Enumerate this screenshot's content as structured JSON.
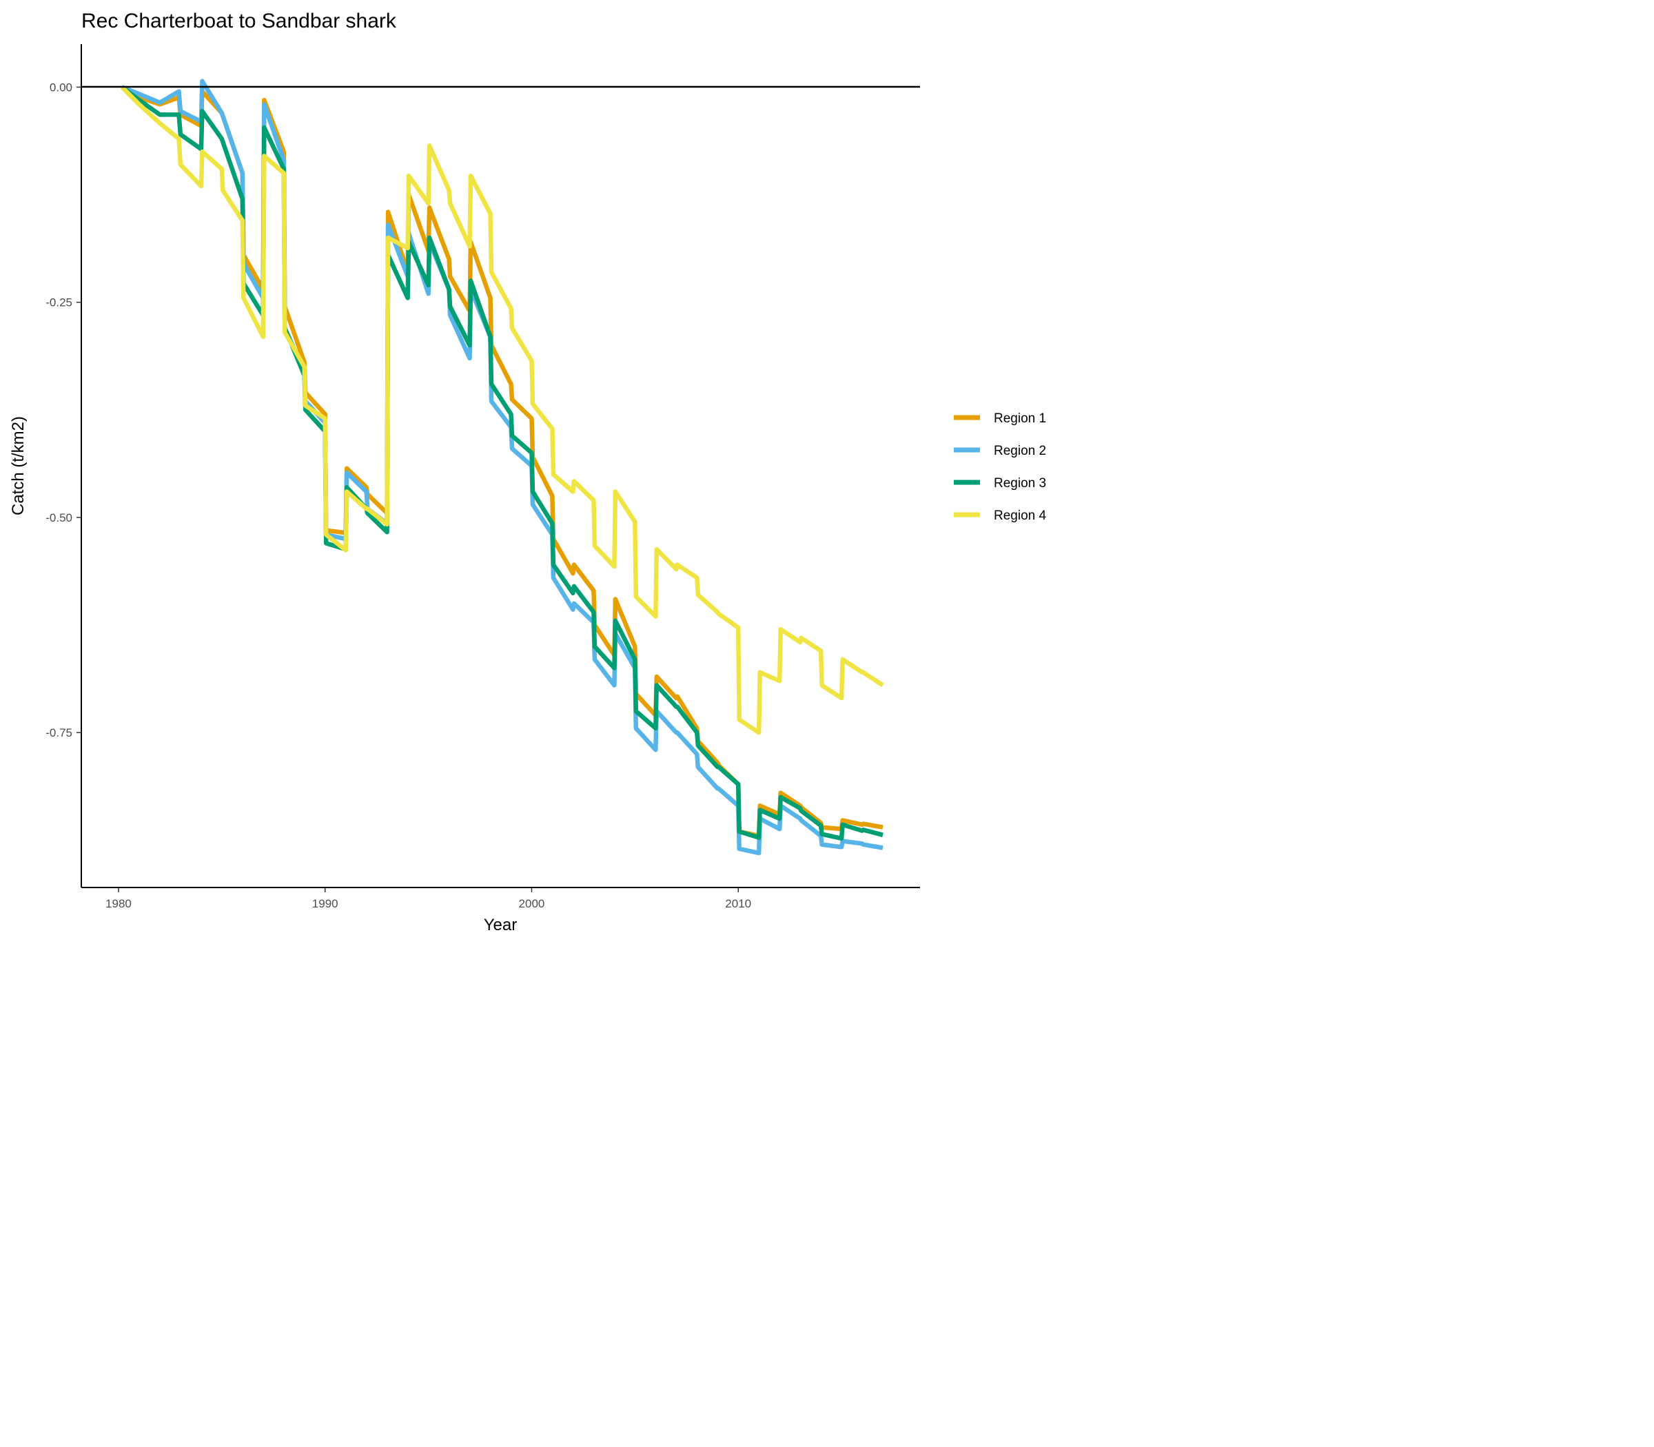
{
  "chart_data": {
    "type": "line",
    "title": "Rec Charterboat to Sandbar shark",
    "xlabel": "Year",
    "ylabel": "Catch (t/km2)",
    "xlim": [
      1978.2,
      2018.8
    ],
    "ylim": [
      -0.93,
      0.05
    ],
    "x_ticks": [
      1980,
      1990,
      2000,
      2010
    ],
    "y_ticks": [
      0,
      -0.25,
      -0.5,
      -0.75
    ],
    "x_tick_labels": [
      "1980",
      "1990",
      "2000",
      "2010"
    ],
    "y_tick_labels": [
      "0.00",
      "-0.25",
      "-0.50",
      "-0.75"
    ],
    "grid": false,
    "reference_line_y": 0,
    "legend_position": "right",
    "series": [
      {
        "name": "Region 1",
        "color": "#E69F00",
        "points": [
          [
            1980.17,
            0
          ],
          [
            1981.0,
            -0.012
          ],
          [
            1982.0,
            -0.02
          ],
          [
            1982.92,
            -0.012
          ],
          [
            1983.0,
            -0.032
          ],
          [
            1984.0,
            -0.045
          ],
          [
            1984.05,
            -0.005
          ],
          [
            1985.0,
            -0.03
          ],
          [
            1986.0,
            -0.1
          ],
          [
            1986.05,
            -0.195
          ],
          [
            1987.0,
            -0.235
          ],
          [
            1987.05,
            -0.015
          ],
          [
            1988.0,
            -0.075
          ],
          [
            1988.05,
            -0.255
          ],
          [
            1989.0,
            -0.32
          ],
          [
            1989.05,
            -0.355
          ],
          [
            1990.0,
            -0.38
          ],
          [
            1990.05,
            -0.515
          ],
          [
            1991.0,
            -0.518
          ],
          [
            1991.05,
            -0.443
          ],
          [
            1992.0,
            -0.465
          ],
          [
            1992.05,
            -0.473
          ],
          [
            1993.0,
            -0.495
          ],
          [
            1993.05,
            -0.145
          ],
          [
            1994.0,
            -0.215
          ],
          [
            1994.05,
            -0.125
          ],
          [
            1995.0,
            -0.19
          ],
          [
            1995.05,
            -0.14
          ],
          [
            1996.0,
            -0.2
          ],
          [
            1996.05,
            -0.22
          ],
          [
            1997.0,
            -0.26
          ],
          [
            1997.05,
            -0.18
          ],
          [
            1998.0,
            -0.245
          ],
          [
            1998.05,
            -0.3
          ],
          [
            1999.0,
            -0.345
          ],
          [
            1999.05,
            -0.363
          ],
          [
            2000.0,
            -0.385
          ],
          [
            2000.05,
            -0.43
          ],
          [
            2001.0,
            -0.475
          ],
          [
            2001.05,
            -0.525
          ],
          [
            2002.0,
            -0.565
          ],
          [
            2002.05,
            -0.555
          ],
          [
            2003.0,
            -0.585
          ],
          [
            2003.05,
            -0.625
          ],
          [
            2004.0,
            -0.66
          ],
          [
            2004.05,
            -0.595
          ],
          [
            2005.0,
            -0.65
          ],
          [
            2005.05,
            -0.705
          ],
          [
            2006.0,
            -0.73
          ],
          [
            2006.05,
            -0.685
          ],
          [
            2007.0,
            -0.71
          ],
          [
            2007.05,
            -0.708
          ],
          [
            2008.0,
            -0.745
          ],
          [
            2008.05,
            -0.76
          ],
          [
            2009.0,
            -0.785
          ],
          [
            2009.05,
            -0.788
          ],
          [
            2010.0,
            -0.81
          ],
          [
            2010.05,
            -0.865
          ],
          [
            2011.0,
            -0.87
          ],
          [
            2011.05,
            -0.835
          ],
          [
            2012.0,
            -0.845
          ],
          [
            2012.05,
            -0.82
          ],
          [
            2013.0,
            -0.835
          ],
          [
            2013.05,
            -0.837
          ],
          [
            2014.0,
            -0.855
          ],
          [
            2014.05,
            -0.86
          ],
          [
            2015.0,
            -0.862
          ],
          [
            2015.05,
            -0.852
          ],
          [
            2016.0,
            -0.857
          ],
          [
            2016.05,
            -0.856
          ],
          [
            2017.0,
            -0.86
          ]
        ]
      },
      {
        "name": "Region 2",
        "color": "#56B4E9",
        "points": [
          [
            1980.17,
            0
          ],
          [
            1981.0,
            -0.008
          ],
          [
            1982.0,
            -0.018
          ],
          [
            1982.92,
            -0.005
          ],
          [
            1983.0,
            -0.028
          ],
          [
            1984.0,
            -0.04
          ],
          [
            1984.05,
            0.007
          ],
          [
            1985.0,
            -0.03
          ],
          [
            1986.0,
            -0.1
          ],
          [
            1986.05,
            -0.205
          ],
          [
            1987.0,
            -0.245
          ],
          [
            1987.05,
            -0.02
          ],
          [
            1988.0,
            -0.085
          ],
          [
            1988.05,
            -0.28
          ],
          [
            1989.0,
            -0.33
          ],
          [
            1989.05,
            -0.365
          ],
          [
            1990.0,
            -0.39
          ],
          [
            1990.05,
            -0.52
          ],
          [
            1991.0,
            -0.525
          ],
          [
            1991.05,
            -0.448
          ],
          [
            1992.0,
            -0.47
          ],
          [
            1992.05,
            -0.49
          ],
          [
            1993.0,
            -0.507
          ],
          [
            1993.05,
            -0.16
          ],
          [
            1994.0,
            -0.22
          ],
          [
            1994.05,
            -0.17
          ],
          [
            1995.0,
            -0.24
          ],
          [
            1995.05,
            -0.18
          ],
          [
            1996.0,
            -0.235
          ],
          [
            1996.05,
            -0.265
          ],
          [
            1997.0,
            -0.315
          ],
          [
            1997.05,
            -0.235
          ],
          [
            1998.0,
            -0.29
          ],
          [
            1998.05,
            -0.365
          ],
          [
            1999.0,
            -0.395
          ],
          [
            1999.05,
            -0.42
          ],
          [
            2000.0,
            -0.44
          ],
          [
            2000.05,
            -0.485
          ],
          [
            2001.0,
            -0.52
          ],
          [
            2001.05,
            -0.57
          ],
          [
            2002.0,
            -0.607
          ],
          [
            2002.05,
            -0.6
          ],
          [
            2003.0,
            -0.622
          ],
          [
            2003.05,
            -0.665
          ],
          [
            2004.0,
            -0.695
          ],
          [
            2004.05,
            -0.635
          ],
          [
            2005.0,
            -0.675
          ],
          [
            2005.05,
            -0.745
          ],
          [
            2006.0,
            -0.77
          ],
          [
            2006.05,
            -0.725
          ],
          [
            2007.0,
            -0.75
          ],
          [
            2007.05,
            -0.75
          ],
          [
            2008.0,
            -0.775
          ],
          [
            2008.05,
            -0.79
          ],
          [
            2009.0,
            -0.815
          ],
          [
            2009.05,
            -0.815
          ],
          [
            2010.0,
            -0.835
          ],
          [
            2010.05,
            -0.885
          ],
          [
            2011.0,
            -0.89
          ],
          [
            2011.05,
            -0.85
          ],
          [
            2012.0,
            -0.862
          ],
          [
            2012.05,
            -0.835
          ],
          [
            2013.0,
            -0.85
          ],
          [
            2013.05,
            -0.852
          ],
          [
            2014.0,
            -0.87
          ],
          [
            2014.05,
            -0.88
          ],
          [
            2015.0,
            -0.883
          ],
          [
            2015.05,
            -0.876
          ],
          [
            2016.0,
            -0.879
          ],
          [
            2016.05,
            -0.88
          ],
          [
            2017.0,
            -0.884
          ]
        ]
      },
      {
        "name": "Region 3",
        "color": "#009E73",
        "points": [
          [
            1980.17,
            0
          ],
          [
            1981.0,
            -0.015
          ],
          [
            1982.0,
            -0.032
          ],
          [
            1982.92,
            -0.032
          ],
          [
            1983.0,
            -0.055
          ],
          [
            1984.0,
            -0.072
          ],
          [
            1984.05,
            -0.028
          ],
          [
            1985.0,
            -0.06
          ],
          [
            1986.0,
            -0.13
          ],
          [
            1986.05,
            -0.228
          ],
          [
            1987.0,
            -0.265
          ],
          [
            1987.05,
            -0.047
          ],
          [
            1988.0,
            -0.095
          ],
          [
            1988.05,
            -0.28
          ],
          [
            1989.0,
            -0.335
          ],
          [
            1989.05,
            -0.375
          ],
          [
            1990.0,
            -0.4
          ],
          [
            1990.05,
            -0.53
          ],
          [
            1991.0,
            -0.537
          ],
          [
            1991.05,
            -0.465
          ],
          [
            1992.0,
            -0.49
          ],
          [
            1992.05,
            -0.495
          ],
          [
            1993.0,
            -0.517
          ],
          [
            1993.05,
            -0.195
          ],
          [
            1994.0,
            -0.245
          ],
          [
            1994.05,
            -0.18
          ],
          [
            1995.0,
            -0.23
          ],
          [
            1995.05,
            -0.175
          ],
          [
            1996.0,
            -0.235
          ],
          [
            1996.05,
            -0.255
          ],
          [
            1997.0,
            -0.3
          ],
          [
            1997.05,
            -0.225
          ],
          [
            1998.0,
            -0.29
          ],
          [
            1998.05,
            -0.345
          ],
          [
            1999.0,
            -0.38
          ],
          [
            1999.05,
            -0.405
          ],
          [
            2000.0,
            -0.425
          ],
          [
            2000.05,
            -0.47
          ],
          [
            2001.0,
            -0.507
          ],
          [
            2001.05,
            -0.555
          ],
          [
            2002.0,
            -0.588
          ],
          [
            2002.05,
            -0.58
          ],
          [
            2003.0,
            -0.61
          ],
          [
            2003.05,
            -0.65
          ],
          [
            2004.0,
            -0.675
          ],
          [
            2004.05,
            -0.62
          ],
          [
            2005.0,
            -0.665
          ],
          [
            2005.05,
            -0.725
          ],
          [
            2006.0,
            -0.745
          ],
          [
            2006.05,
            -0.695
          ],
          [
            2007.0,
            -0.72
          ],
          [
            2007.05,
            -0.72
          ],
          [
            2008.0,
            -0.75
          ],
          [
            2008.05,
            -0.765
          ],
          [
            2009.0,
            -0.79
          ],
          [
            2009.05,
            -0.79
          ],
          [
            2010.0,
            -0.81
          ],
          [
            2010.05,
            -0.865
          ],
          [
            2011.0,
            -0.872
          ],
          [
            2011.05,
            -0.84
          ],
          [
            2012.0,
            -0.85
          ],
          [
            2012.05,
            -0.825
          ],
          [
            2013.0,
            -0.838
          ],
          [
            2013.05,
            -0.841
          ],
          [
            2014.0,
            -0.858
          ],
          [
            2014.05,
            -0.868
          ],
          [
            2015.0,
            -0.873
          ],
          [
            2015.05,
            -0.857
          ],
          [
            2016.0,
            -0.864
          ],
          [
            2016.05,
            -0.863
          ],
          [
            2017.0,
            -0.869
          ]
        ]
      },
      {
        "name": "Region 4",
        "color": "#F0E442",
        "points": [
          [
            1980.17,
            0
          ],
          [
            1981.0,
            -0.02
          ],
          [
            1982.0,
            -0.042
          ],
          [
            1982.92,
            -0.06
          ],
          [
            1983.0,
            -0.09
          ],
          [
            1984.0,
            -0.115
          ],
          [
            1984.05,
            -0.075
          ],
          [
            1985.0,
            -0.095
          ],
          [
            1985.05,
            -0.12
          ],
          [
            1986.0,
            -0.155
          ],
          [
            1986.05,
            -0.245
          ],
          [
            1987.0,
            -0.29
          ],
          [
            1987.05,
            -0.08
          ],
          [
            1988.0,
            -0.1
          ],
          [
            1988.05,
            -0.285
          ],
          [
            1989.0,
            -0.325
          ],
          [
            1989.05,
            -0.37
          ],
          [
            1990.0,
            -0.385
          ],
          [
            1990.05,
            -0.52
          ],
          [
            1991.0,
            -0.538
          ],
          [
            1991.05,
            -0.47
          ],
          [
            1992.0,
            -0.49
          ],
          [
            1992.05,
            -0.49
          ],
          [
            1993.0,
            -0.508
          ],
          [
            1993.05,
            -0.175
          ],
          [
            1994.0,
            -0.187
          ],
          [
            1994.05,
            -0.103
          ],
          [
            1995.0,
            -0.135
          ],
          [
            1995.05,
            -0.068
          ],
          [
            1996.0,
            -0.12
          ],
          [
            1996.05,
            -0.135
          ],
          [
            1997.0,
            -0.185
          ],
          [
            1997.05,
            -0.103
          ],
          [
            1998.0,
            -0.147
          ],
          [
            1998.05,
            -0.215
          ],
          [
            1999.0,
            -0.257
          ],
          [
            1999.05,
            -0.28
          ],
          [
            2000.0,
            -0.318
          ],
          [
            2000.05,
            -0.368
          ],
          [
            2001.0,
            -0.397
          ],
          [
            2001.05,
            -0.45
          ],
          [
            2002.0,
            -0.47
          ],
          [
            2002.05,
            -0.458
          ],
          [
            2003.0,
            -0.48
          ],
          [
            2003.05,
            -0.533
          ],
          [
            2004.0,
            -0.557
          ],
          [
            2004.05,
            -0.47
          ],
          [
            2005.0,
            -0.505
          ],
          [
            2005.05,
            -0.592
          ],
          [
            2006.0,
            -0.615
          ],
          [
            2006.05,
            -0.537
          ],
          [
            2007.0,
            -0.56
          ],
          [
            2007.05,
            -0.555
          ],
          [
            2008.0,
            -0.57
          ],
          [
            2008.05,
            -0.59
          ],
          [
            2009.0,
            -0.61
          ],
          [
            2009.05,
            -0.612
          ],
          [
            2010.0,
            -0.628
          ],
          [
            2010.05,
            -0.735
          ],
          [
            2011.0,
            -0.75
          ],
          [
            2011.05,
            -0.68
          ],
          [
            2012.0,
            -0.69
          ],
          [
            2012.05,
            -0.63
          ],
          [
            2013.0,
            -0.645
          ],
          [
            2013.05,
            -0.64
          ],
          [
            2014.0,
            -0.655
          ],
          [
            2014.05,
            -0.695
          ],
          [
            2015.0,
            -0.71
          ],
          [
            2015.05,
            -0.665
          ],
          [
            2016.0,
            -0.68
          ],
          [
            2016.05,
            -0.68
          ],
          [
            2017.0,
            -0.695
          ]
        ]
      }
    ]
  }
}
